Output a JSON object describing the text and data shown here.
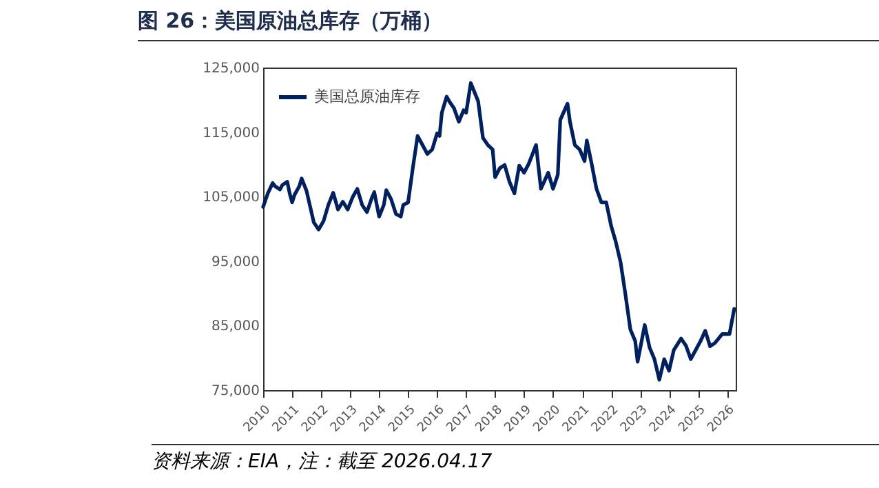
{
  "chart_data": {
    "type": "line",
    "title": "图 26：美国原油总库存（万桶）",
    "annotations": [
      "资料来源：EIA，注：截至 2026.04.17"
    ],
    "x": [
      "2010-01",
      "2010-03",
      "2010-05",
      "2010-06",
      "2010-08",
      "2010-09",
      "2010-11",
      "2010-12",
      "2011-01",
      "2011-02",
      "2011-04",
      "2011-05",
      "2011-07",
      "2011-10",
      "2011-12",
      "2012-02",
      "2012-04",
      "2012-06",
      "2012-08",
      "2012-10",
      "2012-12",
      "2013-02",
      "2013-04",
      "2013-06",
      "2013-08",
      "2013-10",
      "2013-11",
      "2014-01",
      "2014-03",
      "2014-04",
      "2014-06",
      "2014-08",
      "2014-10",
      "2014-11",
      "2015-01",
      "2015-03",
      "2015-05",
      "2015-07",
      "2015-09",
      "2015-11",
      "2016-01",
      "2016-02",
      "2016-03",
      "2016-05",
      "2016-06",
      "2016-08",
      "2016-10",
      "2016-12",
      "2017-01",
      "2017-03",
      "2017-06",
      "2017-08",
      "2017-10",
      "2017-12",
      "2018-01",
      "2018-03",
      "2018-05",
      "2018-07",
      "2018-09",
      "2018-11",
      "2019-01",
      "2019-03",
      "2019-06",
      "2019-08",
      "2019-11",
      "2020-01",
      "2020-03",
      "2020-04",
      "2020-07",
      "2020-08",
      "2020-10",
      "2020-12",
      "2021-02",
      "2021-03",
      "2021-05",
      "2021-07",
      "2021-09",
      "2021-11",
      "2022-01",
      "2022-03",
      "2022-05",
      "2022-07",
      "2022-09",
      "2022-11",
      "2022-12",
      "2023-03",
      "2023-05",
      "2023-07",
      "2023-09",
      "2023-11",
      "2024-01",
      "2024-03",
      "2024-06",
      "2024-08",
      "2024-10",
      "2024-12",
      "2025-02",
      "2025-04",
      "2025-06",
      "2025-08",
      "2025-11",
      "2026-02",
      "2026-04"
    ],
    "series": [
      {
        "name": "美国总原油库存",
        "color": "#002060",
        "values": [
          103400,
          105500,
          107100,
          106600,
          106100,
          106800,
          107300,
          105500,
          104100,
          105300,
          106600,
          107800,
          105900,
          101000,
          99900,
          101200,
          103700,
          105600,
          103000,
          104200,
          103000,
          104900,
          106200,
          103700,
          102600,
          104800,
          105700,
          101900,
          103700,
          106000,
          104600,
          102300,
          101900,
          103700,
          104100,
          109400,
          114400,
          113000,
          111600,
          112300,
          114800,
          114400,
          118000,
          120500,
          119800,
          118700,
          116600,
          118400,
          118000,
          122600,
          119800,
          114100,
          113000,
          112300,
          108000,
          109400,
          109900,
          107300,
          105500,
          109800,
          108700,
          110100,
          113000,
          106200,
          108700,
          106200,
          108400,
          116900,
          119400,
          116600,
          113000,
          112300,
          110500,
          113700,
          110100,
          106200,
          104100,
          104100,
          100500,
          98000,
          94800,
          89800,
          84400,
          82600,
          79400,
          85100,
          81600,
          79800,
          76600,
          79800,
          78000,
          81200,
          83000,
          81900,
          79800,
          81200,
          82600,
          84200,
          81800,
          82300,
          83700,
          83700,
          87600
        ]
      }
    ],
    "xlim": [
      "2010-01-01",
      "2026-04-20"
    ],
    "xticks": [
      {
        "value": "2010",
        "label": "2010"
      },
      {
        "value": "2011",
        "label": "2011"
      },
      {
        "value": "2012",
        "label": "2012"
      },
      {
        "value": "2013",
        "label": "2013"
      },
      {
        "value": "2014",
        "label": "2014"
      },
      {
        "value": "2015",
        "label": "2015"
      },
      {
        "value": "2016",
        "label": "2016"
      },
      {
        "value": "2017",
        "label": "2017"
      },
      {
        "value": "2018",
        "label": "2018"
      },
      {
        "value": "2019",
        "label": "2019"
      },
      {
        "value": "2020",
        "label": "2020"
      },
      {
        "value": "2021",
        "label": "2021"
      },
      {
        "value": "2022",
        "label": "2022"
      },
      {
        "value": "2023",
        "label": "2023"
      },
      {
        "value": "2024",
        "label": "2024"
      },
      {
        "value": "2025",
        "label": "2025"
      },
      {
        "value": "2026",
        "label": "2026"
      }
    ],
    "ylim": [
      75000,
      125000
    ],
    "yticks": [
      {
        "value": 75000,
        "label": "75,000"
      },
      {
        "value": 85000,
        "label": "85,000"
      },
      {
        "value": 95000,
        "label": "95,000"
      },
      {
        "value": 105000,
        "label": "105,000"
      },
      {
        "value": 115000,
        "label": "115,000"
      },
      {
        "value": 125000,
        "label": "125,000"
      }
    ],
    "legend": "top left"
  }
}
